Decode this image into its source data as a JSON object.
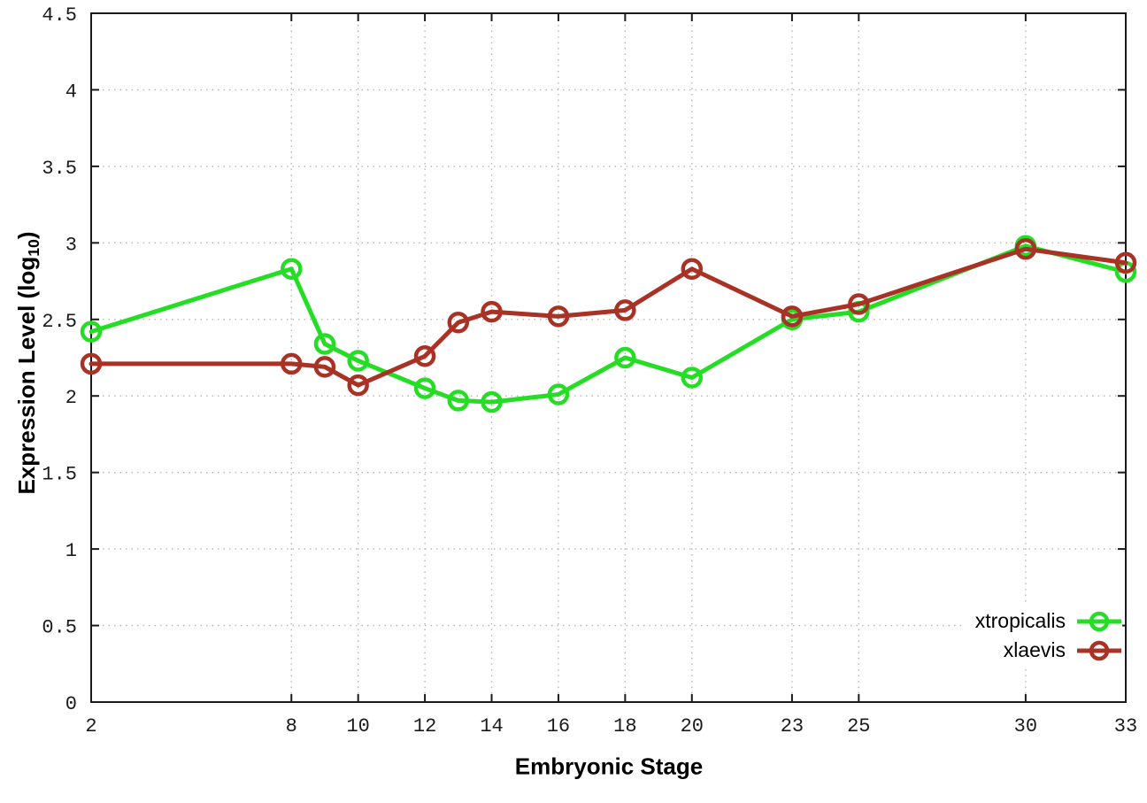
{
  "figure": {
    "background": "#ffffff",
    "border_color": "#1a1a1a",
    "grid_color": "#b5b5b5",
    "tick_label_color": "#1a1a1a"
  },
  "chart_data": {
    "type": "line",
    "title": "",
    "xlabel": "Embryonic Stage",
    "ylabel": "Expression Level (log10)",
    "ylabel_parts": {
      "main": "Expression Level (log",
      "sub": "10",
      "end": ")"
    },
    "xlim": [
      2,
      33
    ],
    "ylim": [
      0,
      4.5
    ],
    "grid": true,
    "legend_position": "inside-bottom-right",
    "x_tick_values": [
      2,
      8,
      10,
      12,
      14,
      16,
      18,
      20,
      23,
      25,
      30,
      33
    ],
    "x_tick_labels": [
      "2",
      "8",
      "10",
      "12",
      "14",
      "16",
      "18",
      "20",
      "23",
      "25",
      "30",
      "33"
    ],
    "y_tick_values": [
      0,
      0.5,
      1,
      1.5,
      2,
      2.5,
      3,
      3.5,
      4,
      4.5
    ],
    "y_tick_labels": [
      "0",
      "0.5",
      "1",
      "1.5",
      "2",
      "2.5",
      "3",
      "3.5",
      "4",
      "4.5"
    ],
    "x": [
      2,
      8,
      9,
      10,
      12,
      13,
      14,
      16,
      18,
      20,
      23,
      25,
      30,
      33
    ],
    "series": [
      {
        "name": "xtropicalis",
        "color": "#25dd25",
        "values": [
          2.42,
          2.83,
          2.34,
          2.23,
          2.05,
          1.97,
          1.96,
          2.01,
          2.25,
          2.12,
          2.5,
          2.55,
          2.98,
          2.81
        ]
      },
      {
        "name": "xlaevis",
        "color": "#a93226",
        "values": [
          2.21,
          2.21,
          2.19,
          2.07,
          2.26,
          2.48,
          2.55,
          2.52,
          2.56,
          2.83,
          2.52,
          2.6,
          2.96,
          2.87
        ]
      }
    ]
  }
}
